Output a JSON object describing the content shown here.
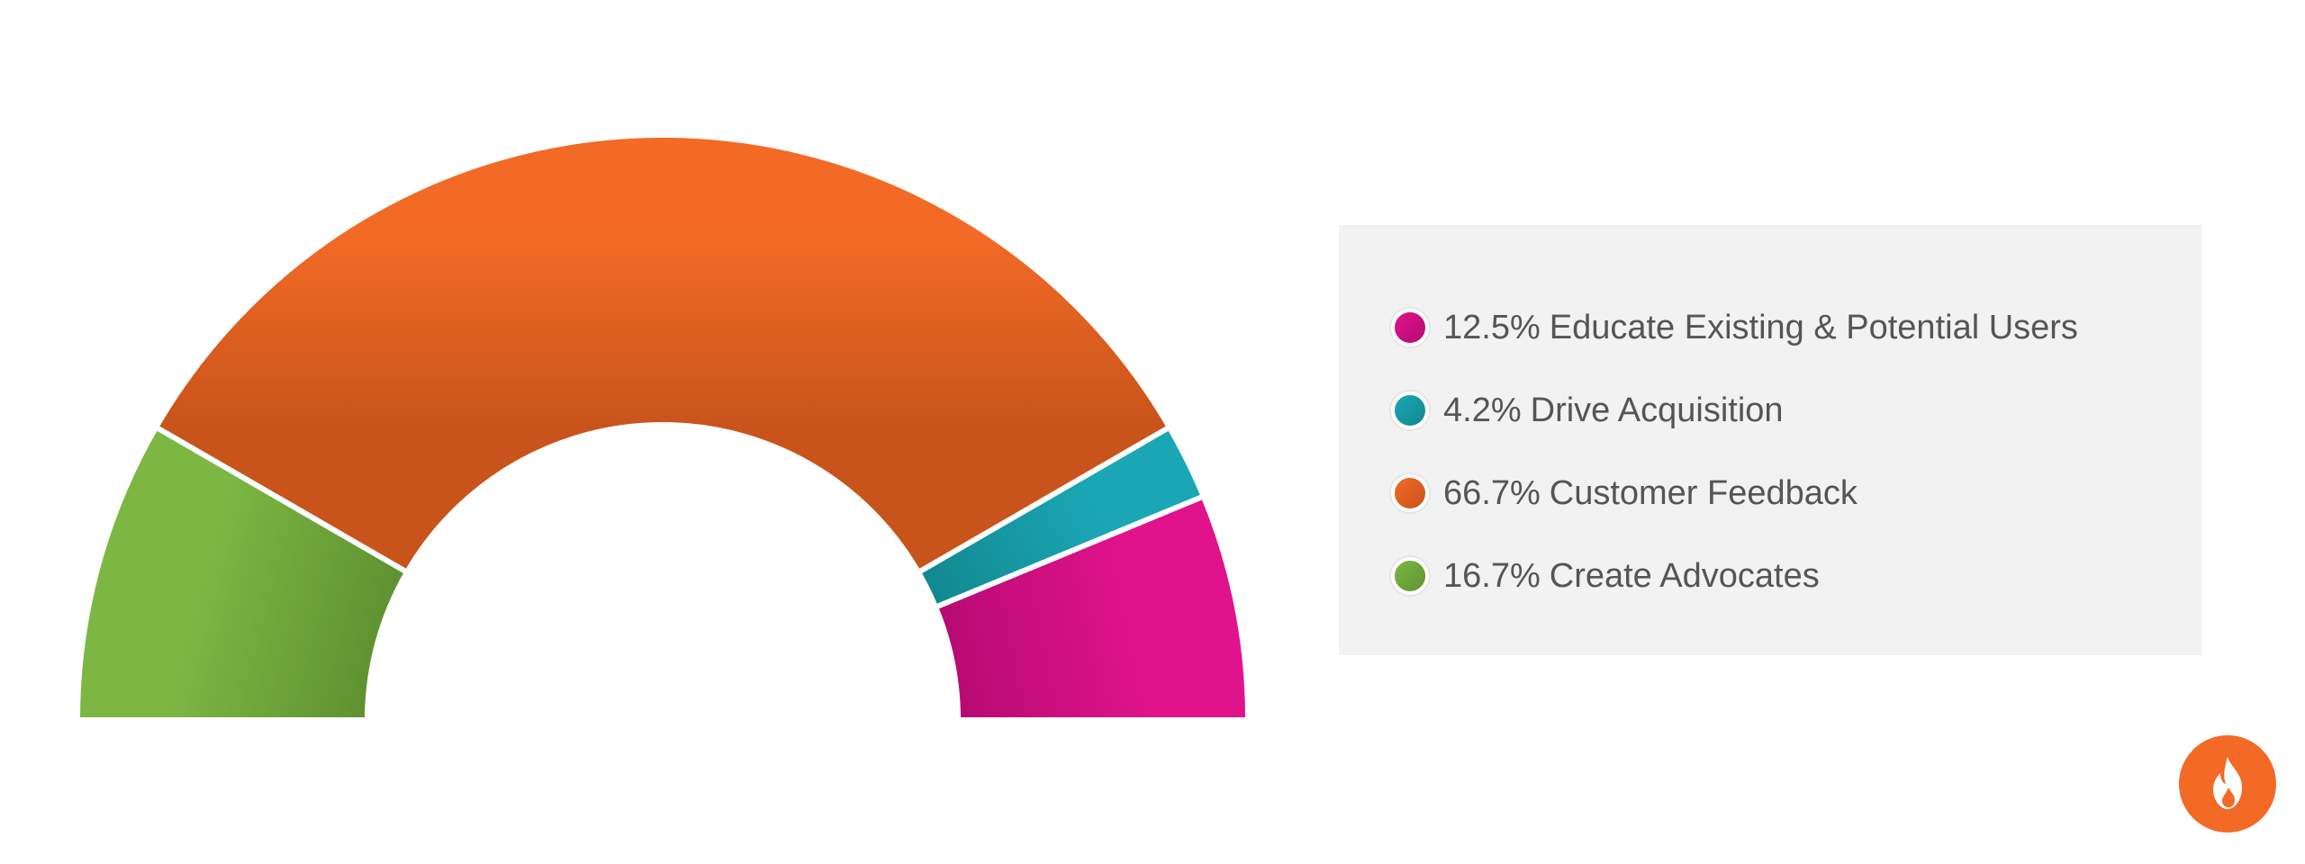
{
  "chart_data": {
    "type": "pie",
    "variant": "semi-donut",
    "slices": [
      {
        "label": "Educate Existing & Potential Users",
        "percent_label": "12.5%",
        "value": 12.5,
        "color": "#e0138c",
        "color_dark": "#b80a73"
      },
      {
        "label": "Drive Acquisition",
        "percent_label": "4.2%",
        "value": 4.2,
        "color": "#1ba6b5",
        "color_dark": "#128890"
      },
      {
        "label": "Customer Feedback",
        "percent_label": "66.7%",
        "value": 66.7,
        "color": "#f26a26",
        "color_dark": "#c9541b"
      },
      {
        "label": "Create Advocates",
        "percent_label": "16.7%",
        "value": 16.7,
        "color": "#7db743",
        "color_dark": "#5f9331"
      }
    ],
    "legend_placement": "right"
  },
  "logo": {
    "color": "#f26a26",
    "icon": "flame-icon"
  }
}
